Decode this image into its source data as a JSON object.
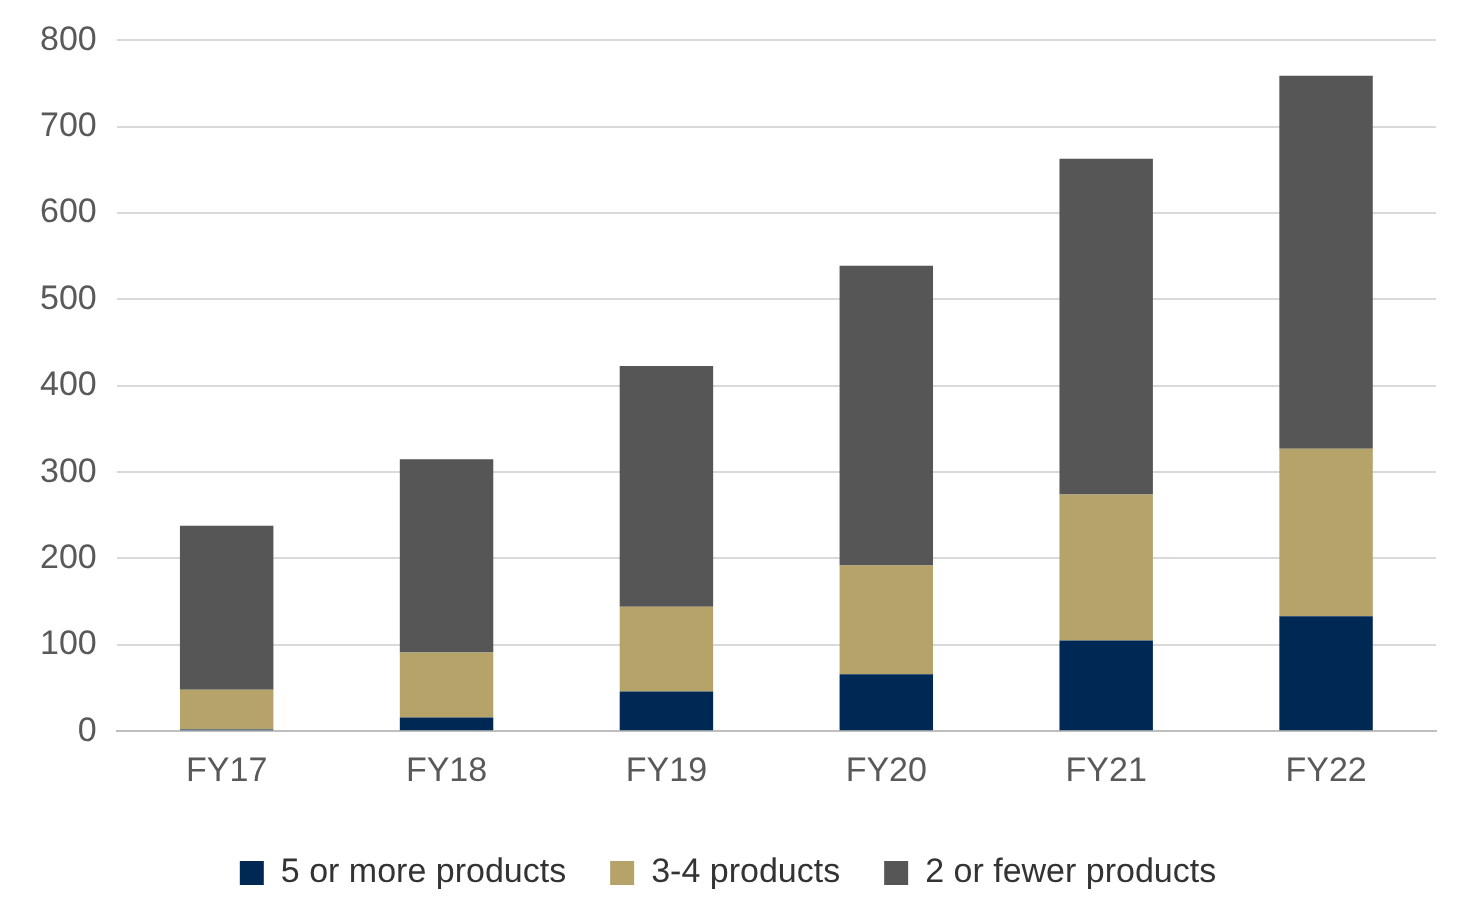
{
  "chart_data": {
    "type": "bar",
    "stacked": true,
    "categories": [
      "FY17",
      "FY18",
      "FY19",
      "FY20",
      "FY21",
      "FY22"
    ],
    "series": [
      {
        "name": "5 or more products",
        "color": "#002855",
        "values": [
          2,
          16,
          46,
          66,
          105,
          133
        ]
      },
      {
        "name": "3-4 products",
        "color": "#b5a36a",
        "values": [
          46,
          75,
          98,
          126,
          169,
          194
        ]
      },
      {
        "name": "2 or fewer products",
        "color": "#565656",
        "values": [
          190,
          224,
          279,
          347,
          389,
          432
        ]
      }
    ],
    "ylim": [
      0,
      800
    ],
    "yticks": [
      0,
      100,
      200,
      300,
      400,
      500,
      600,
      700,
      800
    ],
    "grid": "y",
    "legend": "bottom"
  }
}
